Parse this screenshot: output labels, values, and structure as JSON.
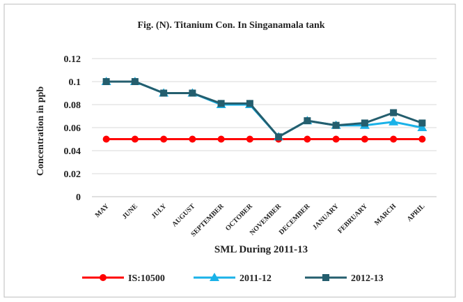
{
  "chart_data": {
    "type": "line",
    "title": "Fig. (N). Titanium Con. In Singanamala tank",
    "x_label": "SML During 2011-13",
    "y_label": "Concentration in ppb",
    "categories": [
      "MAY",
      "JUNE",
      "JULY",
      "AUGUST",
      "SEPTEMBER",
      "OCTOBER",
      "NOVEMBER",
      "DECEMBER",
      "JANUARY",
      "FEBRUARY",
      "MARCH",
      "APRIL"
    ],
    "series": [
      {
        "name": "IS:10500",
        "color": "#ff0000",
        "marker": "circle",
        "values": [
          0.05,
          0.05,
          0.05,
          0.05,
          0.05,
          0.05,
          0.05,
          0.05,
          0.05,
          0.05,
          0.05,
          0.05
        ]
      },
      {
        "name": "2011-12",
        "color": "#1ab2e8",
        "marker": "triangle",
        "values": [
          0.1,
          0.1,
          0.09,
          0.09,
          0.08,
          0.08,
          0.052,
          0.066,
          0.062,
          0.062,
          0.065,
          0.06
        ]
      },
      {
        "name": "2012-13",
        "color": "#245e6e",
        "marker": "square",
        "values": [
          0.1,
          0.1,
          0.09,
          0.09,
          0.081,
          0.081,
          0.052,
          0.066,
          0.062,
          0.064,
          0.073,
          0.064
        ]
      }
    ],
    "ylim": [
      0,
      0.12
    ],
    "yticks": [
      0,
      0.02,
      0.04,
      0.06,
      0.08,
      0.1,
      0.12
    ],
    "grid": true,
    "legend": "bottom"
  }
}
